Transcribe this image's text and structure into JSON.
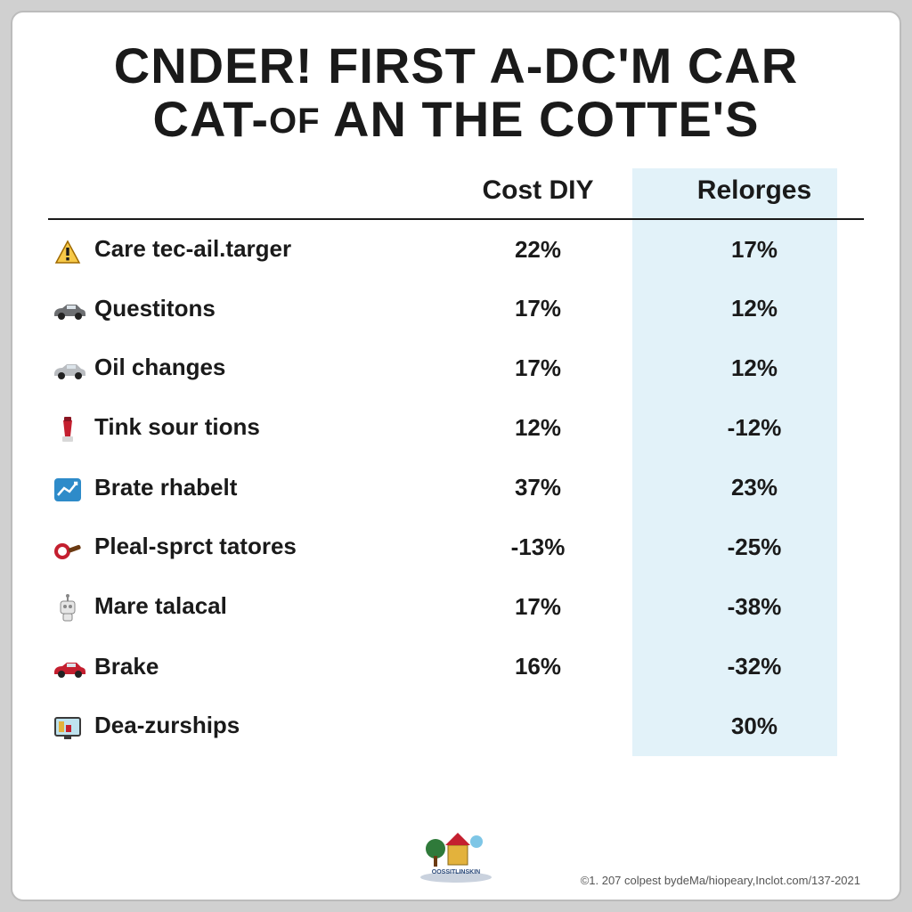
{
  "title": {
    "line1": "CNDER! FIRST A-DC'M CAR",
    "line2_pre": "CAT-",
    "line2_of": "OF",
    "line2_post": " AN THE COTTE'S"
  },
  "columns": {
    "label": "",
    "col1": "Cost DIY",
    "col2": "Relorges"
  },
  "highlight_color": "#d5edf6",
  "text_color": "#1a1a1a",
  "background_color": "#ffffff",
  "rows": [
    {
      "icon": "warning",
      "label": "Care tec-ail.targer",
      "v1": "22%",
      "v2": "17%"
    },
    {
      "icon": "car-gray",
      "label": "Questitons",
      "v1": "17%",
      "v2": "12%"
    },
    {
      "icon": "car-silver",
      "label": "Oil changes",
      "v1": "17%",
      "v2": "12%"
    },
    {
      "icon": "blender",
      "label": "Tink sour tions",
      "v1": "12%",
      "v2": "-12%"
    },
    {
      "icon": "chart",
      "label": "Brate rhabelt",
      "v1": "37%",
      "v2": "23%"
    },
    {
      "icon": "pan",
      "label": "Pleal-sprct tatores",
      "v1": "-13%",
      "v2": "-25%"
    },
    {
      "icon": "robot",
      "label": "Mare talacal",
      "v1": "17%",
      "v2": "-38%"
    },
    {
      "icon": "car-red",
      "label": "Brake",
      "v1": "16%",
      "v2": "-32%"
    },
    {
      "icon": "monitor",
      "label": "Dea-zurships",
      "v1": "",
      "v2": "30%"
    }
  ],
  "icons": {
    "warning": {
      "fill": "#f7c948",
      "stroke": "#a06a00"
    },
    "car-gray": {
      "body": "#6d6f72",
      "wheel": "#222"
    },
    "car-silver": {
      "body": "#b9bcc0",
      "wheel": "#222"
    },
    "blender": {
      "body": "#c41f2f",
      "cap": "#8a1522",
      "base": "#d8d8d8"
    },
    "chart": {
      "bg": "#2e8bc9",
      "line": "#ffffff"
    },
    "pan": {
      "body": "#c41f2f",
      "handle": "#6b3a12"
    },
    "robot": {
      "body": "#e6e6e6",
      "accent": "#888"
    },
    "car-red": {
      "body": "#c41f2f",
      "wheel": "#222"
    },
    "monitor": {
      "frame": "#3a3a3a",
      "screen": "#bfe3ef",
      "accent": "#e3b23c"
    }
  },
  "footer_logo_colors": {
    "tree": "#2f7a3a",
    "house": "#c41f2f",
    "sky": "#7ec6e6",
    "text": "#2b4a7a"
  },
  "copyright": "©1. 207 colpest bydeMa/hiopeary,Inclot.com/137-2021"
}
